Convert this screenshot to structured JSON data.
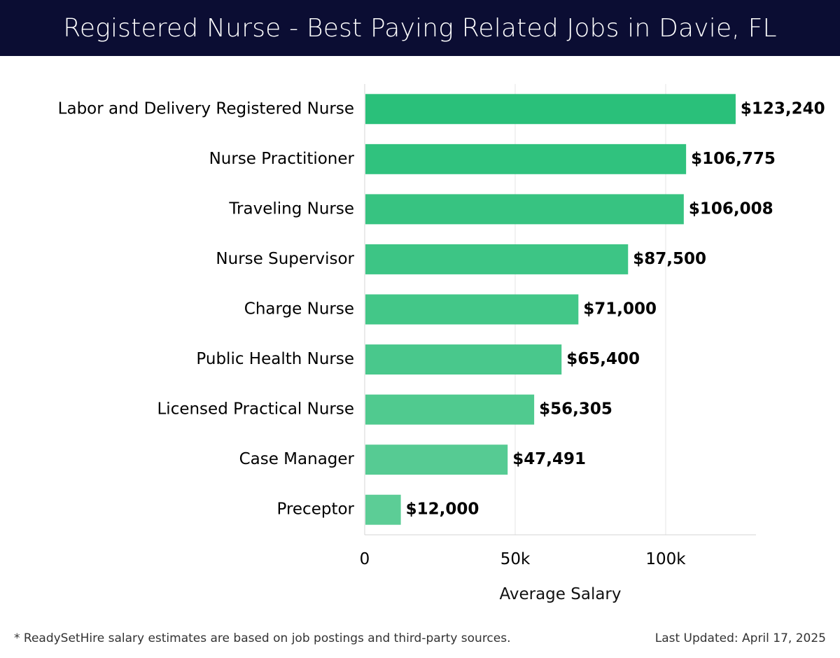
{
  "header": {
    "title": "Registered Nurse - Best Paying Related Jobs in Davie, FL"
  },
  "colors": {
    "header_bg": "#0b0d33",
    "bar_top": "#2ac07a",
    "bar_bottom": "#5ccd96",
    "grid": "#e6e6e6",
    "text": "#000000"
  },
  "chart_data": {
    "type": "bar",
    "orientation": "horizontal",
    "categories": [
      "Labor and Delivery Registered Nurse",
      "Nurse Practitioner",
      "Traveling Nurse",
      "Nurse Supervisor",
      "Charge Nurse",
      "Public Health Nurse",
      "Licensed Practical Nurse",
      "Case Manager",
      "Preceptor"
    ],
    "values": [
      123240,
      106775,
      106008,
      87500,
      71000,
      65400,
      56305,
      47491,
      12000
    ],
    "value_labels": [
      "$123,240",
      "$106,775",
      "$106,008",
      "$87,500",
      "$71,000",
      "$65,400",
      "$56,305",
      "$47,491",
      "$12,000"
    ],
    "xlabel": "Average Salary",
    "ylabel": "",
    "xlim": [
      0,
      130000
    ],
    "ticks": [
      0,
      50000,
      100000
    ],
    "tick_labels": [
      "0",
      "50k",
      "100k"
    ],
    "grid": "vertical",
    "legend": "none"
  },
  "footer": {
    "note": "* ReadySetHire salary estimates are based on job postings and third-party sources.",
    "updated": "Last Updated: April 17, 2025"
  }
}
